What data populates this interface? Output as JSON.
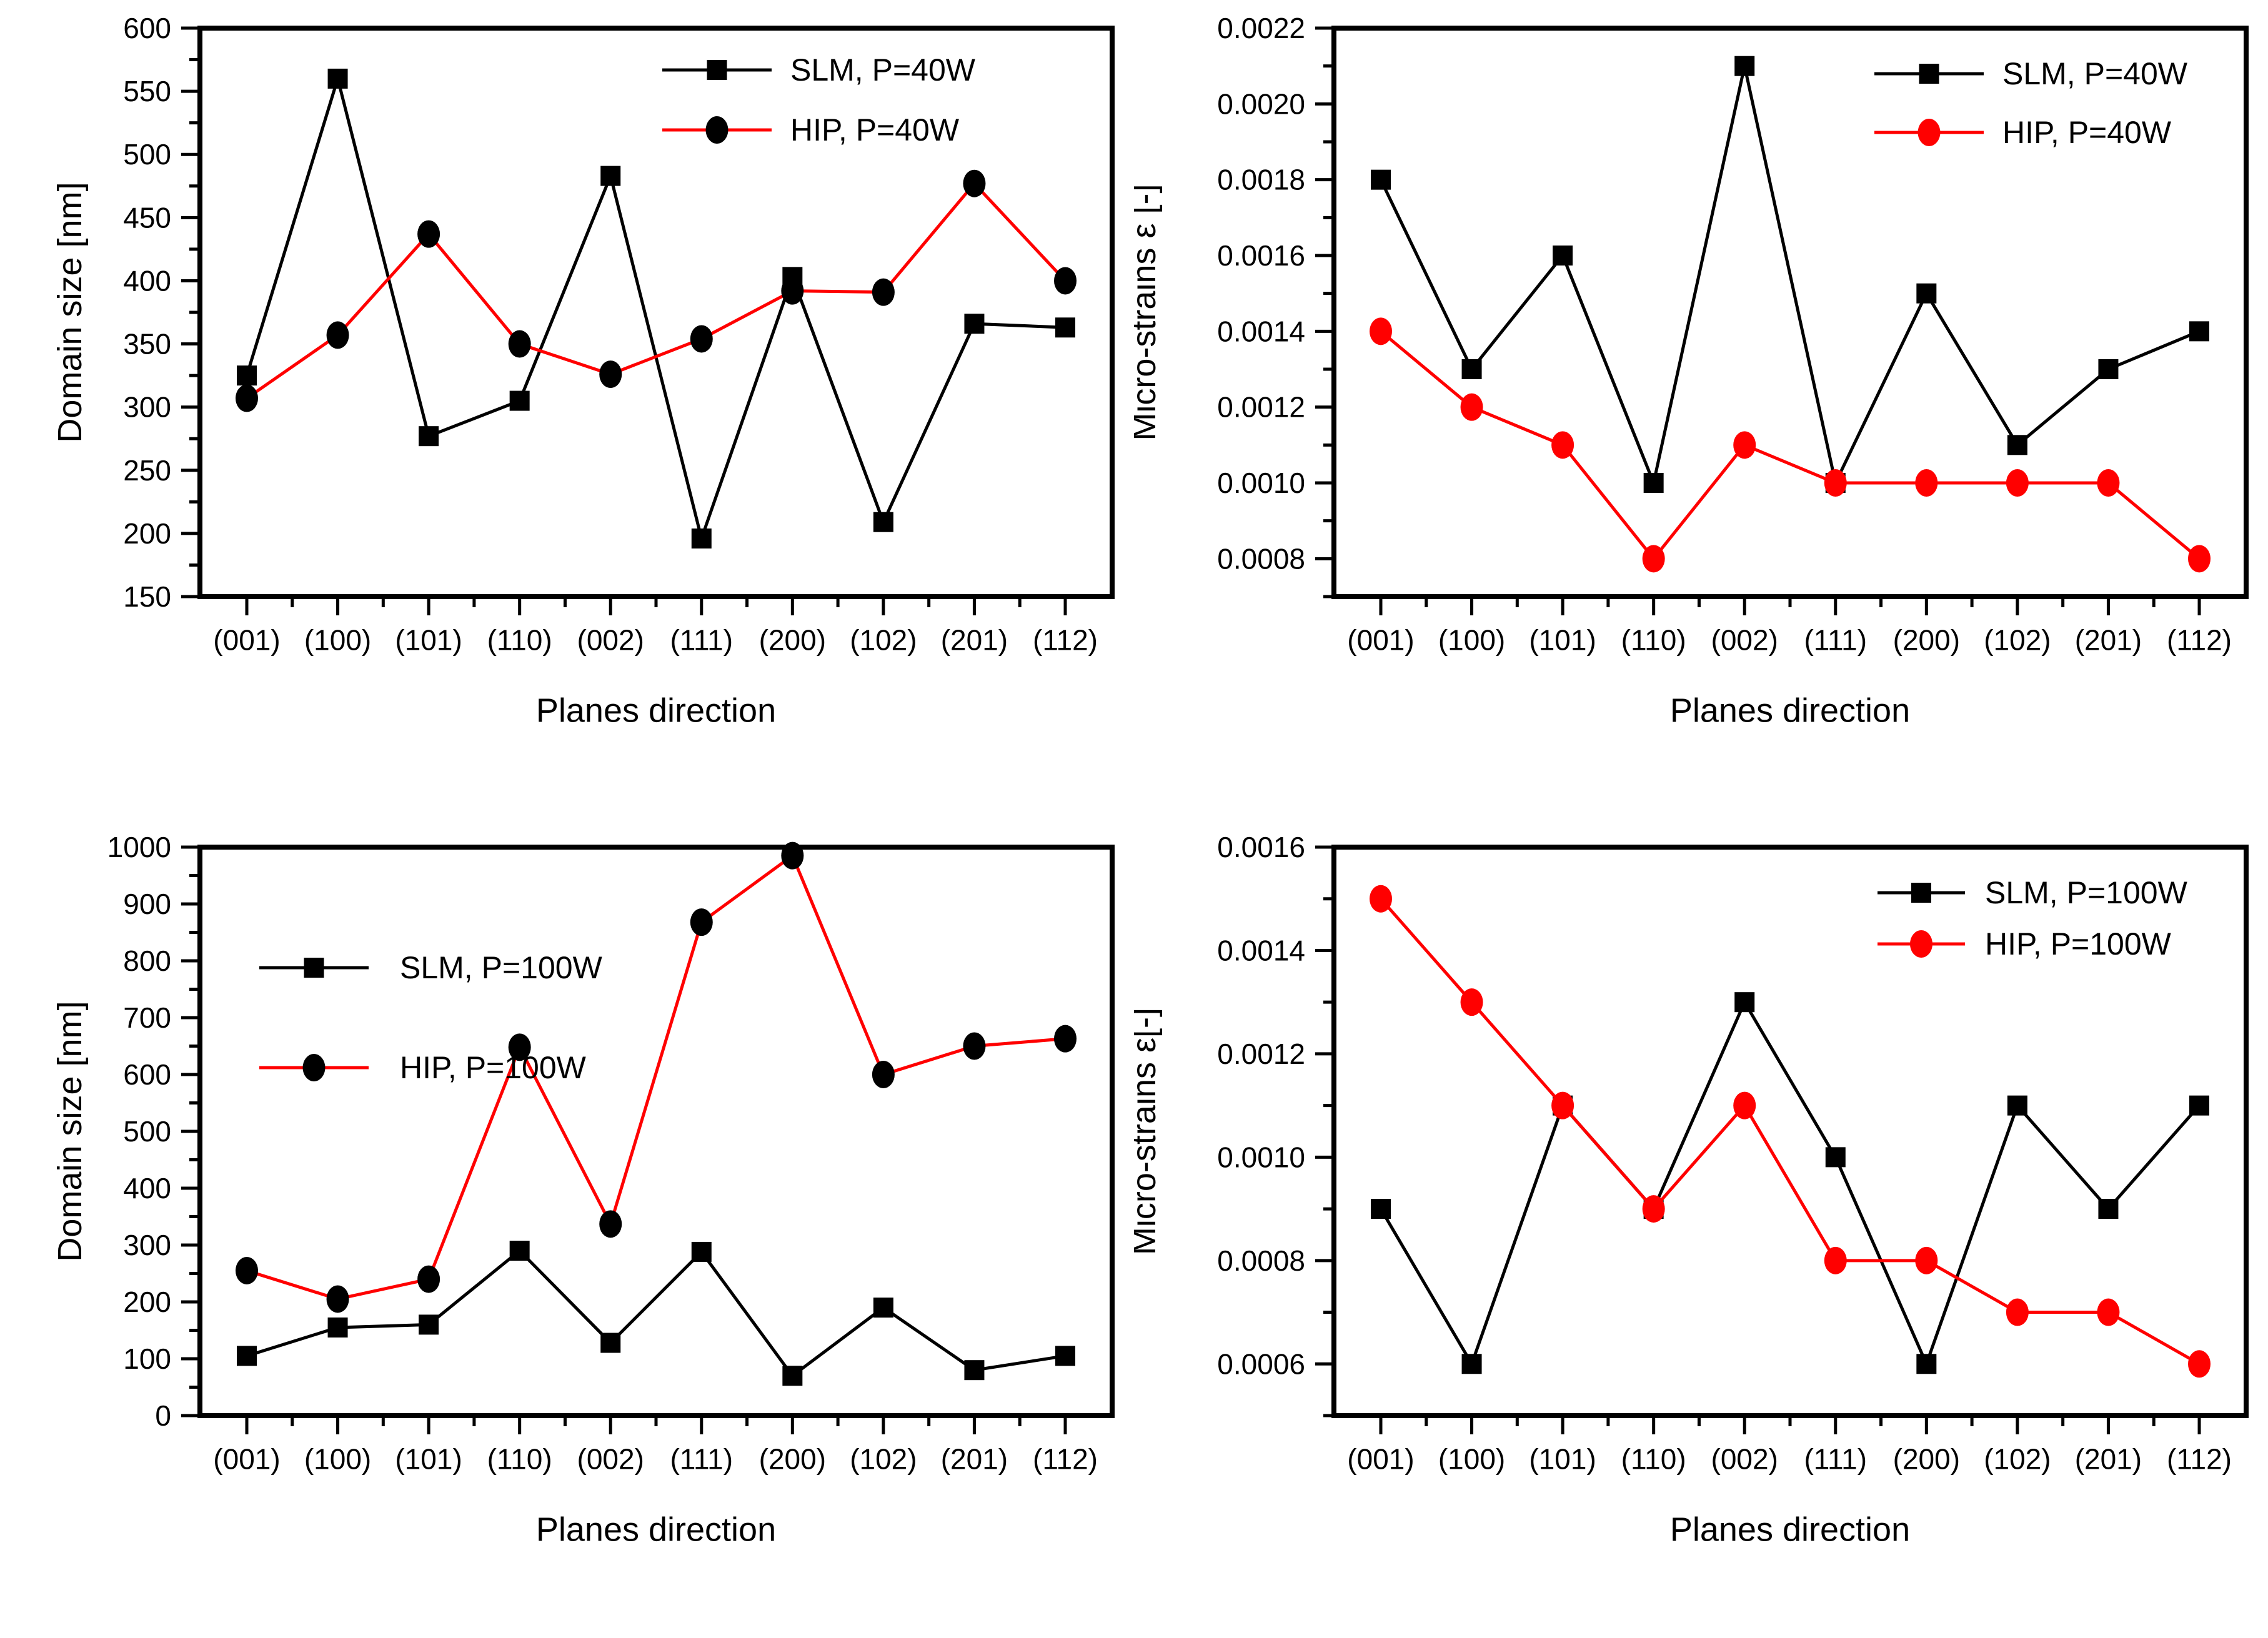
{
  "page": {
    "background": "#ffffff",
    "text_color": "#000000"
  },
  "colors": {
    "slm_line": "#000000",
    "hip_line": "#ff0000",
    "hip_marker_left_panels": "#000000",
    "hip_marker_right_panels": "#ff0000"
  },
  "chart_data": [
    {
      "id": "domain-size-p40w",
      "position": "top-left",
      "type": "line",
      "title": "",
      "xlabel": "Planes direction",
      "ylabel": "Domain size [nm]",
      "categories": [
        "(001)",
        "(100)",
        "(101)",
        "(110)",
        "(002)",
        "(111)",
        "(200)",
        "(102)",
        "(201)",
        "(112)"
      ],
      "ylim": [
        150,
        600
      ],
      "yticks": {
        "values": [
          150,
          200,
          250,
          300,
          350,
          400,
          450,
          500,
          550,
          600
        ],
        "labels": [
          "150",
          "200",
          "250",
          "300",
          "350",
          "400",
          "450",
          "500",
          "550",
          "600"
        ],
        "minor_step": 25
      },
      "grid": false,
      "legend_position": "top-right",
      "series": [
        {
          "name": "SLM, P=40W",
          "line_color": "#000000",
          "marker": "square",
          "marker_color": "#000000",
          "values": [
            325,
            560,
            277,
            305,
            483,
            196,
            403,
            209,
            366,
            363
          ]
        },
        {
          "name": "HIP, P=40W",
          "line_color": "#ff0000",
          "marker": "circle",
          "marker_color": "#000000",
          "values": [
            307,
            357,
            437,
            350,
            326,
            354,
            392,
            391,
            477,
            400
          ]
        }
      ]
    },
    {
      "id": "micro-strains-p40w",
      "position": "top-right",
      "type": "line",
      "title": "",
      "xlabel": "Planes direction",
      "ylabel": "Micro-strains ε [-]",
      "categories": [
        "(001)",
        "(100)",
        "(101)",
        "(110)",
        "(002)",
        "(111)",
        "(200)",
        "(102)",
        "(201)",
        "(112)"
      ],
      "ylim": [
        0.0007,
        0.0022
      ],
      "yticks": {
        "values": [
          0.0008,
          0.001,
          0.0012,
          0.0014,
          0.0016,
          0.0018,
          0.002,
          0.0022
        ],
        "labels": [
          "0.0008",
          "0.0010",
          "0.0012",
          "0.0014",
          "0.0016",
          "0.0018",
          "0.0020",
          "0.0022"
        ],
        "minor_step": 0.0001
      },
      "grid": false,
      "legend_position": "top-right",
      "series": [
        {
          "name": "SLM, P=40W",
          "line_color": "#000000",
          "marker": "square",
          "marker_color": "#000000",
          "values": [
            0.0018,
            0.0013,
            0.0016,
            0.001,
            0.0021,
            0.001,
            0.0015,
            0.0011,
            0.0013,
            0.0014
          ]
        },
        {
          "name": "HIP, P=40W",
          "line_color": "#ff0000",
          "marker": "circle",
          "marker_color": "#ff0000",
          "values": [
            0.0014,
            0.0012,
            0.0011,
            0.0008,
            0.0011,
            0.001,
            0.001,
            0.001,
            0.001,
            0.0008
          ]
        }
      ]
    },
    {
      "id": "domain-size-p100w",
      "position": "bottom-left",
      "type": "line",
      "title": "",
      "xlabel": "Planes direction",
      "ylabel": "Domain size [nm]",
      "categories": [
        "(001)",
        "(100)",
        "(101)",
        "(110)",
        "(002)",
        "(111)",
        "(200)",
        "(102)",
        "(201)",
        "(112)"
      ],
      "ylim": [
        0,
        1000
      ],
      "yticks": {
        "values": [
          0,
          100,
          200,
          300,
          400,
          500,
          600,
          700,
          800,
          900,
          1000
        ],
        "labels": [
          "0",
          "100",
          "200",
          "300",
          "400",
          "500",
          "600",
          "700",
          "800",
          "900",
          "1000"
        ],
        "minor_step": 50
      },
      "grid": false,
      "legend_position": "top-left",
      "series": [
        {
          "name": "SLM, P=100W",
          "line_color": "#000000",
          "marker": "square",
          "marker_color": "#000000",
          "values": [
            105,
            155,
            160,
            290,
            128,
            288,
            70,
            190,
            80,
            105
          ]
        },
        {
          "name": "HIP, P=100W",
          "line_color": "#ff0000",
          "marker": "circle",
          "marker_color": "#000000",
          "values": [
            255,
            205,
            240,
            648,
            337,
            868,
            985,
            600,
            650,
            663
          ]
        }
      ]
    },
    {
      "id": "micro-strains-p100w",
      "position": "bottom-right",
      "type": "line",
      "title": "",
      "xlabel": "Planes direction",
      "ylabel": "Micro-strains ε[-]",
      "categories": [
        "(001)",
        "(100)",
        "(101)",
        "(110)",
        "(002)",
        "(111)",
        "(200)",
        "(102)",
        "(201)",
        "(112)"
      ],
      "ylim": [
        0.0005,
        0.0016
      ],
      "yticks": {
        "values": [
          0.0006,
          0.0008,
          0.001,
          0.0012,
          0.0014,
          0.0016
        ],
        "labels": [
          "0.0006",
          "0.0008",
          "0.0010",
          "0.0012",
          "0.0014",
          "0.0016"
        ],
        "minor_step": 0.0001
      },
      "grid": false,
      "legend_position": "top-right",
      "series": [
        {
          "name": "SLM, P=100W",
          "line_color": "#000000",
          "marker": "square",
          "marker_color": "#000000",
          "values": [
            0.0009,
            0.0006,
            0.0011,
            0.0009,
            0.0013,
            0.001,
            0.0006,
            0.0011,
            0.0009,
            0.0011
          ]
        },
        {
          "name": "HIP, P=100W",
          "line_color": "#ff0000",
          "marker": "circle",
          "marker_color": "#ff0000",
          "values": [
            0.0015,
            0.0013,
            0.0011,
            0.0009,
            0.0011,
            0.0008,
            0.0008,
            0.0007,
            0.0007,
            0.0006
          ]
        }
      ]
    }
  ]
}
